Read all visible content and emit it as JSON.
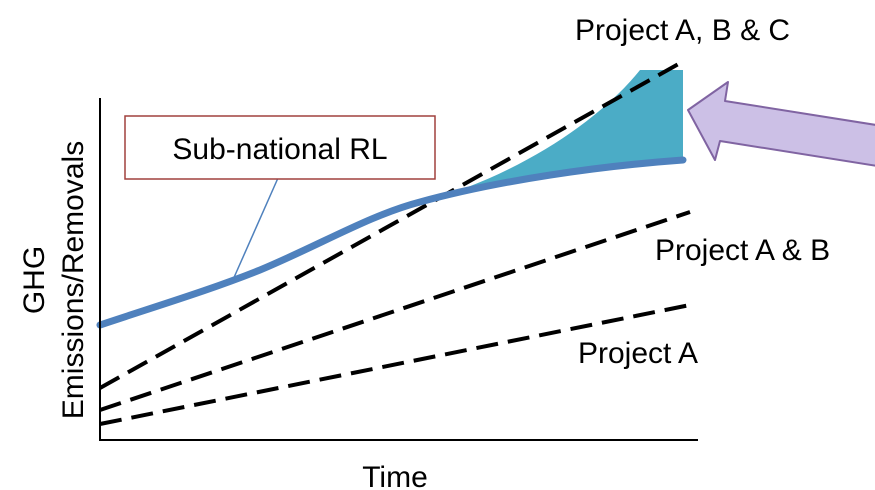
{
  "colors": {
    "background": "#ffffff",
    "axis": "#000000",
    "subnational_line": "#4f81bd",
    "leader_line": "#4f81bd",
    "shaded_area": "#4bacc6",
    "project_lines": "#000000",
    "callout_border": "#a0413d",
    "arrow_fill": "#ccc0e6",
    "arrow_stroke": "#8064a2"
  },
  "labels": {
    "callout": "Sub-national RL",
    "project_abc": "Project A, B & C",
    "project_ab": "Project A & B",
    "project_a": "Project A",
    "x_axis": "Time",
    "y_axis_line1": "GHG",
    "y_axis_line2": "Emissions/Removals"
  },
  "icons": {
    "pointer": "left-arrow-icon"
  }
}
